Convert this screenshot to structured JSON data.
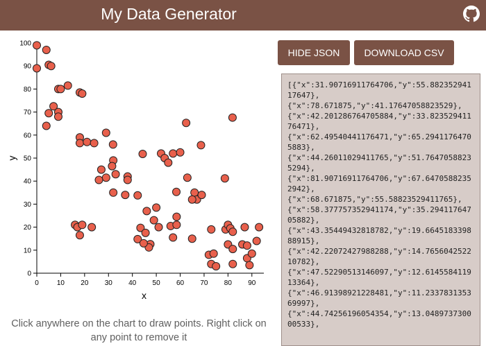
{
  "header": {
    "title": "My Data Generator",
    "github_icon": "github-icon",
    "background": "#7a5245"
  },
  "buttons": {
    "hide_json": "HIDE JSON",
    "download_csv": "DOWNLOAD CSV"
  },
  "hint": "Click anywhere on the chart to draw points. Right click on any point to remove it",
  "json_text": "[{\"x\":31.90716911764706,\"y\":55.88235294117647},\n{\"x\":78.671875,\"y\":41.17647058823529},\n{\"x\":42.201286764705884,\"y\":33.82352941176471},\n{\"x\":62.49540441176471,\"y\":65.29411764705883},\n{\"x\":44.26011029411765,\"y\":51.76470588235294},\n{\"x\":81.90716911764706,\"y\":67.64705882352942},\n{\"x\":68.671875,\"y\":55.58823529411765},\n{\"x\":58.377757352941174,\"y\":35.29411764705882},\n{\"x\":43.35449432818782,\"y\":19.664518339888915},\n{\"x\":42.22072427988288,\"y\":14.765604252210782},\n{\"x\":47.52290513146097,\"y\":12.614558411913364},\n{\"x\":46.91398921228481,\"y\":11.233783135369997},\n{\"x\":44.74256196054354,\"y\":13.048973730000533},",
  "chart_data": {
    "type": "scatter",
    "xlabel": "x",
    "ylabel": "y",
    "xlim": [
      0,
      95
    ],
    "ylim": [
      0,
      100
    ],
    "xticks": [
      0,
      10,
      20,
      30,
      40,
      50,
      60,
      70,
      80,
      90
    ],
    "yticks": [
      0,
      10,
      20,
      30,
      40,
      50,
      60,
      70,
      80,
      90,
      100
    ],
    "grid": false,
    "point_color": "#e8604c",
    "points": [
      {
        "x": 0,
        "y": 99
      },
      {
        "x": 0,
        "y": 89
      },
      {
        "x": 4,
        "y": 97
      },
      {
        "x": 5,
        "y": 90.5
      },
      {
        "x": 6,
        "y": 90
      },
      {
        "x": 9,
        "y": 80
      },
      {
        "x": 10,
        "y": 80
      },
      {
        "x": 13,
        "y": 81.5
      },
      {
        "x": 18,
        "y": 78.5
      },
      {
        "x": 19,
        "y": 78
      },
      {
        "x": 7,
        "y": 72.5
      },
      {
        "x": 5,
        "y": 69.5
      },
      {
        "x": 9,
        "y": 70
      },
      {
        "x": 9,
        "y": 68
      },
      {
        "x": 4,
        "y": 64
      },
      {
        "x": 18,
        "y": 59
      },
      {
        "x": 18,
        "y": 56.5
      },
      {
        "x": 21,
        "y": 57
      },
      {
        "x": 24,
        "y": 56.5
      },
      {
        "x": 29,
        "y": 61
      },
      {
        "x": 31.9,
        "y": 55.9
      },
      {
        "x": 32,
        "y": 49
      },
      {
        "x": 31.5,
        "y": 46.5
      },
      {
        "x": 27,
        "y": 45
      },
      {
        "x": 29,
        "y": 41.5
      },
      {
        "x": 26,
        "y": 40.5
      },
      {
        "x": 33,
        "y": 43
      },
      {
        "x": 38,
        "y": 42
      },
      {
        "x": 38,
        "y": 40.5
      },
      {
        "x": 32,
        "y": 35
      },
      {
        "x": 37,
        "y": 34
      },
      {
        "x": 42.2,
        "y": 33.8
      },
      {
        "x": 44.3,
        "y": 51.8
      },
      {
        "x": 52,
        "y": 52
      },
      {
        "x": 53.5,
        "y": 50
      },
      {
        "x": 55,
        "y": 48
      },
      {
        "x": 57,
        "y": 52
      },
      {
        "x": 60,
        "y": 52.5
      },
      {
        "x": 62.5,
        "y": 65.3
      },
      {
        "x": 68.7,
        "y": 55.6
      },
      {
        "x": 63,
        "y": 41.5
      },
      {
        "x": 58.4,
        "y": 35.3
      },
      {
        "x": 66,
        "y": 35
      },
      {
        "x": 67,
        "y": 32
      },
      {
        "x": 65,
        "y": 32
      },
      {
        "x": 69,
        "y": 34
      },
      {
        "x": 78.7,
        "y": 41.2
      },
      {
        "x": 81.9,
        "y": 67.6
      },
      {
        "x": 46,
        "y": 27
      },
      {
        "x": 50,
        "y": 28.5
      },
      {
        "x": 49,
        "y": 23
      },
      {
        "x": 51,
        "y": 20
      },
      {
        "x": 58.5,
        "y": 24.5
      },
      {
        "x": 56,
        "y": 20.5
      },
      {
        "x": 58.5,
        "y": 21
      },
      {
        "x": 43.4,
        "y": 19.7
      },
      {
        "x": 45.5,
        "y": 17.5
      },
      {
        "x": 42.2,
        "y": 14.8
      },
      {
        "x": 47.5,
        "y": 12.6
      },
      {
        "x": 46.9,
        "y": 11.2
      },
      {
        "x": 44.7,
        "y": 13
      },
      {
        "x": 57,
        "y": 15.5
      },
      {
        "x": 65,
        "y": 15
      },
      {
        "x": 16,
        "y": 21
      },
      {
        "x": 17,
        "y": 20
      },
      {
        "x": 19,
        "y": 21
      },
      {
        "x": 18,
        "y": 16.5
      },
      {
        "x": 23,
        "y": 20
      },
      {
        "x": 73,
        "y": 19
      },
      {
        "x": 79,
        "y": 19
      },
      {
        "x": 80,
        "y": 21
      },
      {
        "x": 81,
        "y": 19.5
      },
      {
        "x": 82,
        "y": 18
      },
      {
        "x": 87,
        "y": 20
      },
      {
        "x": 93,
        "y": 20
      },
      {
        "x": 80,
        "y": 12.5
      },
      {
        "x": 82,
        "y": 10.5
      },
      {
        "x": 86,
        "y": 12.5
      },
      {
        "x": 88,
        "y": 12
      },
      {
        "x": 92,
        "y": 14
      },
      {
        "x": 72,
        "y": 8
      },
      {
        "x": 74,
        "y": 8.5
      },
      {
        "x": 88,
        "y": 6.5
      },
      {
        "x": 90,
        "y": 8.5
      },
      {
        "x": 73,
        "y": 4
      },
      {
        "x": 75,
        "y": 3
      },
      {
        "x": 82,
        "y": 4
      },
      {
        "x": 89,
        "y": 3.5
      }
    ]
  }
}
